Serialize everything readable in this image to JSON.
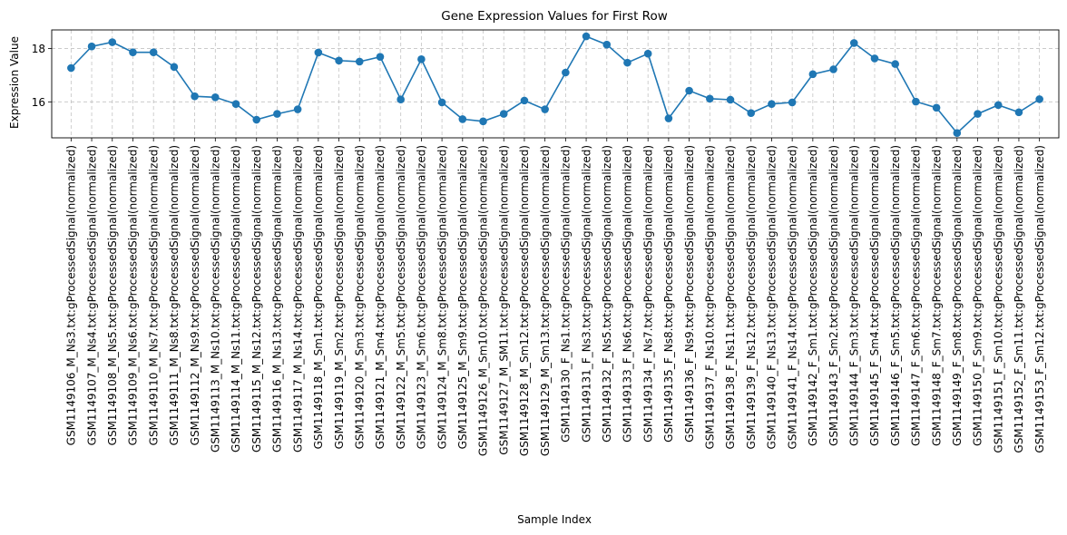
{
  "chart_data": {
    "type": "line",
    "title": "Gene Expression Values for First Row",
    "xlabel": "Sample Index",
    "ylabel": "Expression Value",
    "ylim": [
      14.65,
      18.7
    ],
    "yticks": [
      16,
      18
    ],
    "grid": true,
    "line_color": "#1f77b4",
    "marker": "circle",
    "categories": [
      "GSM1149106_M_Ns3.txt:gProcessedSignal(normalized)",
      "GSM1149107_M_Ns4.txt:gProcessedSignal(normalized)",
      "GSM1149108_M_Ns5.txt:gProcessedSignal(normalized)",
      "GSM1149109_M_Ns6.txt:gProcessedSignal(normalized)",
      "GSM1149110_M_Ns7.txt:gProcessedSignal(normalized)",
      "GSM1149111_M_Ns8.txt:gProcessedSignal(normalized)",
      "GSM1149112_M_Ns9.txt:gProcessedSignal(normalized)",
      "GSM1149113_M_Ns10.txt:gProcessedSignal(normalized)",
      "GSM1149114_M_Ns11.txt:gProcessedSignal(normalized)",
      "GSM1149115_M_Ns12.txt:gProcessedSignal(normalized)",
      "GSM1149116_M_Ns13.txt:gProcessedSignal(normalized)",
      "GSM1149117_M_Ns14.txt:gProcessedSignal(normalized)",
      "GSM1149118_M_Sm1.txt:gProcessedSignal(normalized)",
      "GSM1149119_M_Sm2.txt:gProcessedSignal(normalized)",
      "GSM1149120_M_Sm3.txt:gProcessedSignal(normalized)",
      "GSM1149121_M_Sm4.txt:gProcessedSignal(normalized)",
      "GSM1149122_M_Sm5.txt:gProcessedSignal(normalized)",
      "GSM1149123_M_Sm6.txt:gProcessedSignal(normalized)",
      "GSM1149124_M_Sm8.txt:gProcessedSignal(normalized)",
      "GSM1149125_M_Sm9.txt:gProcessedSignal(normalized)",
      "GSM1149126_M_Sm10.txt:gProcessedSignal(normalized)",
      "GSM1149127_M_SM11.txt:gProcessedSignal(normalized)",
      "GSM1149128_M_Sm12.txt:gProcessedSignal(normalized)",
      "GSM1149129_M_Sm13.txt:gProcessedSignal(normalized)",
      "GSM1149130_F_Ns1.txt:gProcessedSignal(normalized)",
      "GSM1149131_F_Ns3.txt:gProcessedSignal(normalized)",
      "GSM1149132_F_Ns5.txt:gProcessedSignal(normalized)",
      "GSM1149133_F_Ns6.txt:gProcessedSignal(normalized)",
      "GSM1149134_F_Ns7.txt:gProcessedSignal(normalized)",
      "GSM1149135_F_Ns8.txt:gProcessedSignal(normalized)",
      "GSM1149136_F_Ns9.txt:gProcessedSignal(normalized)",
      "GSM1149137_F_Ns10.txt:gProcessedSignal(normalized)",
      "GSM1149138_F_Ns11.txt:gProcessedSignal(normalized)",
      "GSM1149139_F_Ns12.txt:gProcessedSignal(normalized)",
      "GSM1149140_F_Ns13.txt:gProcessedSignal(normalized)",
      "GSM1149141_F_Ns14.txt:gProcessedSignal(normalized)",
      "GSM1149142_F_Sm1.txt:gProcessedSignal(normalized)",
      "GSM1149143_F_Sm2.txt:gProcessedSignal(normalized)",
      "GSM1149144_F_Sm3.txt:gProcessedSignal(normalized)",
      "GSM1149145_F_Sm4.txt:gProcessedSignal(normalized)",
      "GSM1149146_F_Sm5.txt:gProcessedSignal(normalized)",
      "GSM1149147_F_Sm6.txt:gProcessedSignal(normalized)",
      "GSM1149148_F_Sm7.txt:gProcessedSignal(normalized)",
      "GSM1149149_F_Sm8.txt:gProcessedSignal(normalized)",
      "GSM1149150_F_Sm9.txt:gProcessedSignal(normalized)",
      "GSM1149151_F_Sm10.txt:gProcessedSignal(normalized)",
      "GSM1149152_F_Sm11.txt:gProcessedSignal(normalized)",
      "GSM1149153_F_Sm12.txt:gProcessedSignal(normalized)"
    ],
    "values": [
      17.27,
      18.08,
      18.24,
      17.86,
      17.86,
      17.31,
      16.21,
      16.17,
      15.92,
      15.33,
      15.55,
      15.72,
      17.85,
      17.55,
      17.51,
      17.69,
      16.09,
      17.6,
      15.98,
      15.35,
      15.27,
      15.55,
      16.05,
      15.72,
      17.1,
      18.46,
      18.15,
      17.47,
      17.81,
      15.38,
      16.42,
      16.12,
      16.08,
      15.58,
      15.92,
      15.98,
      17.04,
      17.22,
      18.21,
      17.63,
      17.42,
      16.01,
      15.78,
      14.83,
      15.55,
      15.88,
      15.61,
      16.1
    ]
  }
}
